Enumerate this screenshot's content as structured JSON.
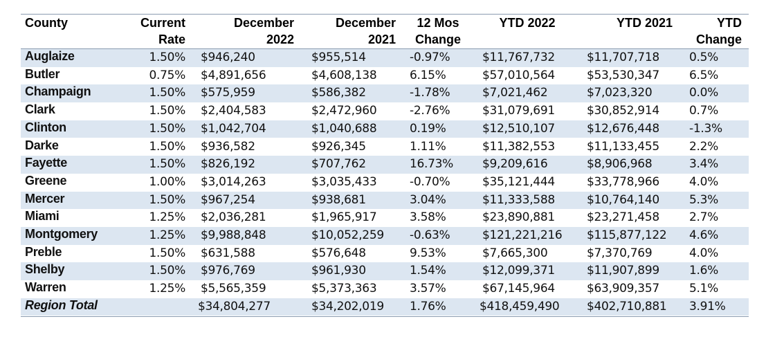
{
  "table": {
    "header": [
      [
        "County"
      ],
      [
        "Current",
        "Rate"
      ],
      [
        "December",
        "2022"
      ],
      [
        "December",
        "2021"
      ],
      [
        "12 Mos",
        "Change"
      ],
      [
        "YTD 2022"
      ],
      [
        "YTD 2021"
      ],
      [
        "YTD",
        "Change"
      ]
    ],
    "rows": [
      [
        "Auglaize",
        "1.50%",
        "$946,240",
        "$955,514",
        "-0.97%",
        "$11,767,732",
        "$11,707,718",
        "0.5%"
      ],
      [
        "Butler",
        "0.75%",
        "$4,891,656",
        "$4,608,138",
        "6.15%",
        "$57,010,564",
        "$53,530,347",
        "6.5%"
      ],
      [
        "Champaign",
        "1.50%",
        "$575,959",
        "$586,382",
        "-1.78%",
        "$7,021,462",
        "$7,023,320",
        "0.0%"
      ],
      [
        "Clark",
        "1.50%",
        "$2,404,583",
        "$2,472,960",
        "-2.76%",
        "$31,079,691",
        "$30,852,914",
        "0.7%"
      ],
      [
        "Clinton",
        "1.50%",
        "$1,042,704",
        "$1,040,688",
        "0.19%",
        "$12,510,107",
        "$12,676,448",
        "-1.3%"
      ],
      [
        "Darke",
        "1.50%",
        "$936,582",
        "$926,345",
        "1.11%",
        "$11,382,553",
        "$11,133,455",
        "2.2%"
      ],
      [
        "Fayette",
        "1.50%",
        "$826,192",
        "$707,762",
        "16.73%",
        "$9,209,616",
        "$8,906,968",
        "3.4%"
      ],
      [
        "Greene",
        "1.00%",
        "$3,014,263",
        "$3,035,433",
        "-0.70%",
        "$35,121,444",
        "$33,778,966",
        "4.0%"
      ],
      [
        "Mercer",
        "1.50%",
        "$967,254",
        "$938,681",
        "3.04%",
        "$11,333,588",
        "$10,764,140",
        "5.3%"
      ],
      [
        "Miami",
        "1.25%",
        "$2,036,281",
        "$1,965,917",
        "3.58%",
        "$23,890,881",
        "$23,271,458",
        "2.7%"
      ],
      [
        "Montgomery",
        "1.25%",
        "$9,988,848",
        "$10,052,259",
        "-0.63%",
        "$121,221,216",
        "$115,877,122",
        "4.6%"
      ],
      [
        "Preble",
        "1.50%",
        "$631,588",
        "$576,648",
        "9.53%",
        "$7,665,300",
        "$7,370,769",
        "4.0%"
      ],
      [
        "Shelby",
        "1.50%",
        "$976,769",
        "$961,930",
        "1.54%",
        "$12,099,371",
        "$11,907,899",
        "1.6%"
      ],
      [
        "Warren",
        "1.25%",
        "$5,565,359",
        "$5,373,363",
        "3.57%",
        "$67,145,964",
        "$63,909,357",
        "5.1%"
      ],
      [
        "Region Total",
        "",
        "$34,804,277",
        "$34,202,019",
        "1.76%",
        "$418,459,490",
        "$402,710,881",
        "3.91%"
      ]
    ]
  }
}
